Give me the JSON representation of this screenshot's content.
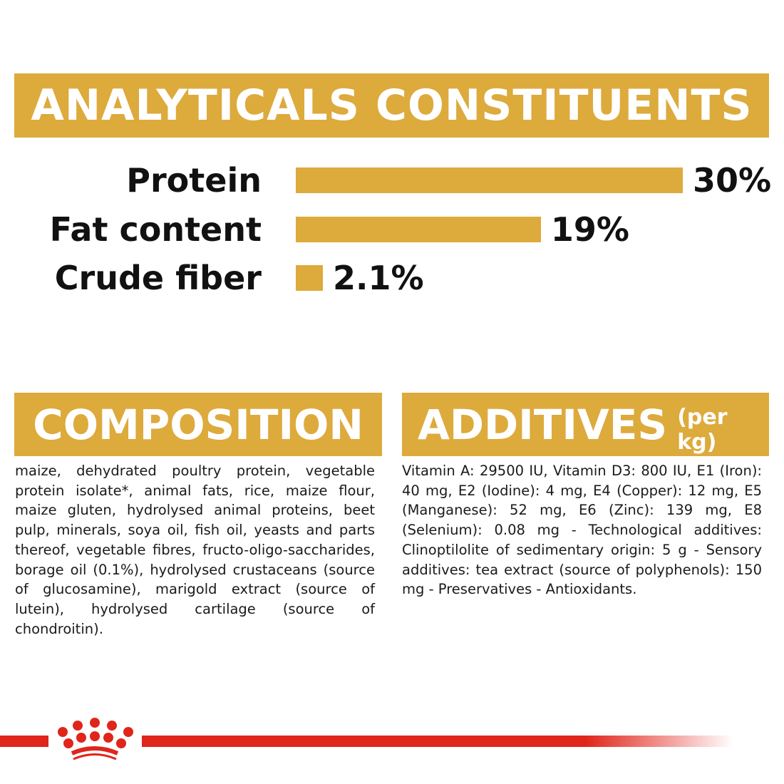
{
  "analytics": {
    "title": "ANALYTICALS CONSTITUENTS",
    "rows": [
      {
        "label": "Protein",
        "value": "30%",
        "percent": 30
      },
      {
        "label": "Fat content",
        "value": "19%",
        "percent": 19
      },
      {
        "label": "Crude fiber",
        "value": "2.1%",
        "percent": 2.1
      }
    ]
  },
  "composition": {
    "title": "COMPOSITION",
    "text": "maize, dehydrated poultry protein, vegetable protein isolate*, animal fats, rice, maize flour, maize gluten, hydrolysed animal proteins, beet pulp, minerals, soya oil, fish oil, yeasts and parts thereof, vegetable fibres, fructo-oligo-saccharides, borage oil (0.1%), hydrolysed crustaceans (source of glucosamine), marigold extract (source of lutein), hydrolysed cartilage (source of chondroitin)."
  },
  "additives": {
    "title": "ADDITIVES",
    "unit": "(per kg)",
    "text": "Vitamin A: 29500 IU, Vitamin D3: 800 IU, E1 (Iron): 40 mg, E2 (Iodine): 4 mg, E4 (Copper): 12 mg, E5 (Manganese): 52 mg, E6 (Zinc): 139 mg, E8 (Selenium): 0.08 mg - Technological additives: Clinoptilolite of sedimentary origin: 5 g - Sensory additives: tea extract (source of polyphenols): 150 mg - Preservatives - Antioxidants."
  },
  "colors": {
    "accent": "#DDAA3C",
    "brand_red": "#E0251B"
  },
  "footer": {
    "logo": "royal-canin-crown"
  }
}
